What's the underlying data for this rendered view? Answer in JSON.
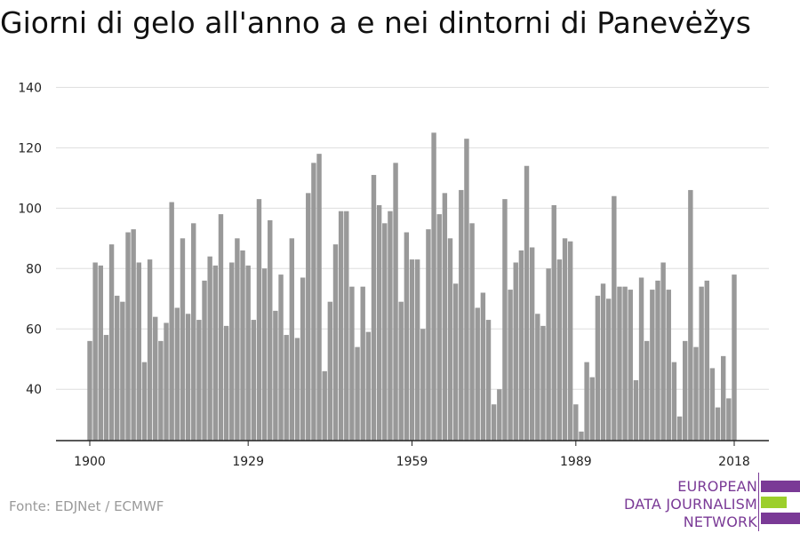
{
  "title": "Giorni di gelo all'anno a e nei dintorni di Panevėžys",
  "source": "Fonte: EDJNet / ECMWF",
  "logo": {
    "lines": [
      "EUROPEAN",
      "DATA JOURNALISM",
      "NETWORK"
    ],
    "colors": {
      "purple": "#7a3a96",
      "green": "#9ccf2b"
    }
  },
  "colors": {
    "bar": "#999999",
    "grid": "#dddddd",
    "axis": "#222222"
  },
  "chart_data": {
    "type": "bar",
    "title": "Giorni di gelo all'anno a e nei dintorni di Panevėžys",
    "xlabel": "",
    "ylabel": "",
    "ylim": [
      23,
      146
    ],
    "y_ticks": [
      40,
      60,
      80,
      100,
      120,
      140
    ],
    "x_ticks": [
      1900,
      1929,
      1959,
      1989,
      2018
    ],
    "x": [
      1900,
      1901,
      1902,
      1903,
      1904,
      1905,
      1906,
      1907,
      1908,
      1909,
      1910,
      1911,
      1912,
      1913,
      1914,
      1915,
      1916,
      1917,
      1918,
      1919,
      1920,
      1921,
      1922,
      1923,
      1924,
      1925,
      1926,
      1927,
      1928,
      1929,
      1930,
      1931,
      1932,
      1933,
      1934,
      1935,
      1936,
      1937,
      1938,
      1939,
      1940,
      1941,
      1942,
      1943,
      1944,
      1945,
      1946,
      1947,
      1948,
      1949,
      1950,
      1951,
      1952,
      1953,
      1954,
      1955,
      1956,
      1957,
      1958,
      1959,
      1960,
      1961,
      1962,
      1963,
      1964,
      1965,
      1966,
      1967,
      1968,
      1969,
      1970,
      1971,
      1972,
      1973,
      1974,
      1975,
      1976,
      1977,
      1978,
      1979,
      1980,
      1981,
      1982,
      1983,
      1984,
      1985,
      1986,
      1987,
      1988,
      1989,
      1990,
      1991,
      1992,
      1993,
      1994,
      1995,
      1996,
      1997,
      1998,
      1999,
      2000,
      2001,
      2002,
      2003,
      2004,
      2005,
      2006,
      2007,
      2008,
      2009,
      2010,
      2011,
      2012,
      2013,
      2014,
      2015,
      2016,
      2017,
      2018
    ],
    "values": [
      56,
      82,
      81,
      58,
      88,
      71,
      69,
      92,
      93,
      82,
      49,
      83,
      64,
      56,
      62,
      102,
      67,
      90,
      65,
      95,
      63,
      76,
      84,
      81,
      98,
      61,
      82,
      90,
      86,
      81,
      63,
      103,
      80,
      96,
      66,
      78,
      58,
      90,
      57,
      77,
      105,
      115,
      118,
      46,
      69,
      88,
      99,
      99,
      74,
      54,
      74,
      59,
      111,
      101,
      95,
      99,
      115,
      69,
      92,
      83,
      83,
      60,
      93,
      125,
      98,
      105,
      90,
      75,
      106,
      123,
      95,
      67,
      72,
      63,
      35,
      40,
      103,
      73,
      82,
      86,
      114,
      87,
      65,
      61,
      80,
      101,
      83,
      90,
      89,
      35,
      26,
      49,
      44,
      71,
      75,
      70,
      104,
      74,
      74,
      73,
      43,
      77,
      56,
      73,
      76,
      82,
      73,
      49,
      31,
      56,
      106,
      54,
      74,
      76,
      47,
      34,
      51,
      37,
      78
    ]
  }
}
